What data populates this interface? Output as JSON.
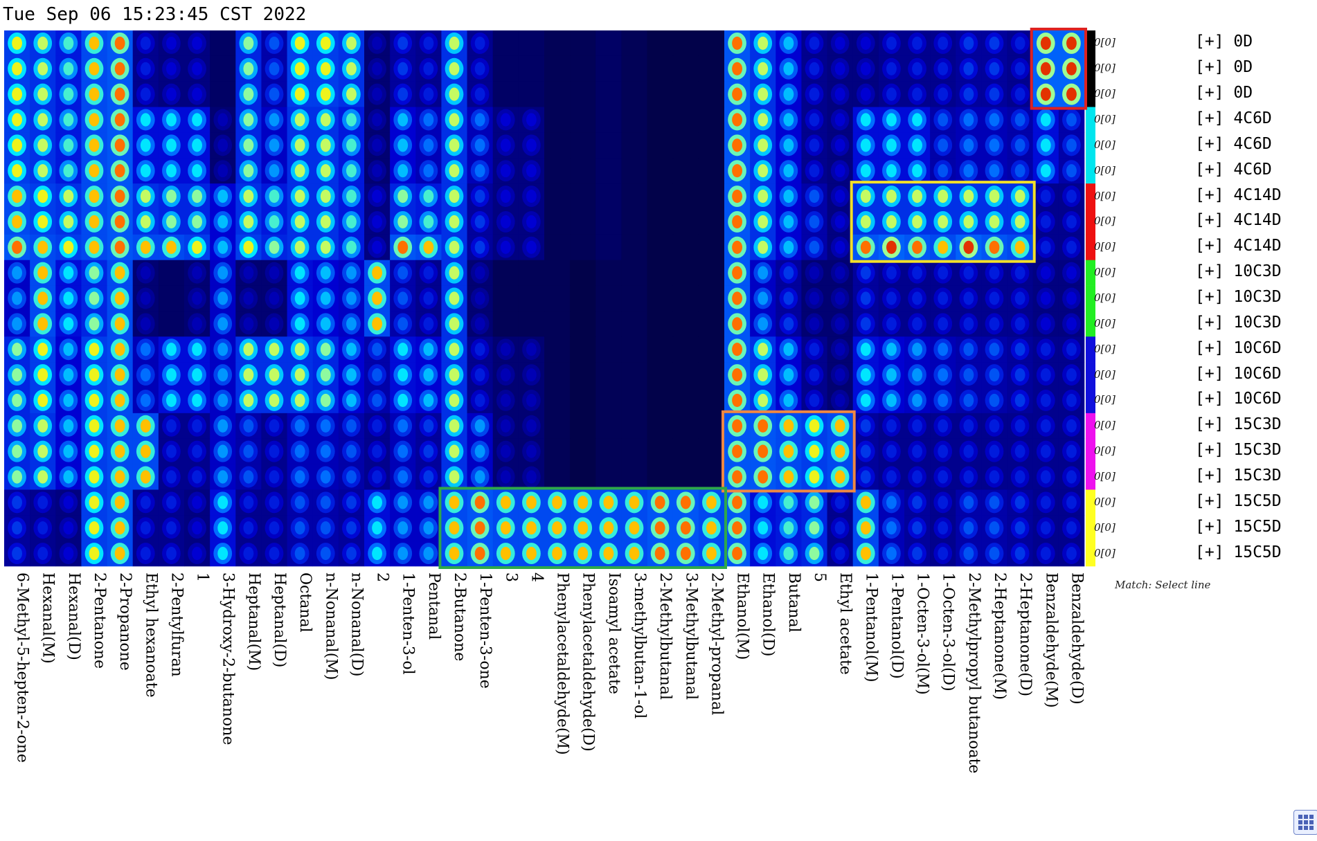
{
  "header": {
    "timestamp": "Tue Sep 06 15:23:45 CST 2022"
  },
  "footer": {
    "match_hint": "Match: Select line"
  },
  "chart_data": {
    "type": "heatmap",
    "title": "",
    "columns": [
      "6-Methyl-5-hepten-2-one",
      "Hexanal(M)",
      "Hexanal(D)",
      "2-Pentanone",
      "2-Propanone",
      "Ethyl hexanoate",
      "2-Pentylfuran",
      "1",
      "3-Hydroxy-2-butanone",
      "Heptanal(M)",
      "Heptanal(D)",
      "Octanal",
      "n-Nonanal(M)",
      "n-Nonanal(D)",
      "2",
      "1-Penten-3-ol",
      "Pentanal",
      "2-Butanone",
      "1-Penten-3-one",
      "3",
      "4",
      "Phenylacetaldehyde(M)",
      "Phenylacetaldehyde(D)",
      "Isoamyl acetate",
      "3-methylbutan-1-ol",
      "2-Methylbutanal",
      "3-Methylbutanal",
      "2-Methyl-propanal",
      "Ethanol(M)",
      "Ethanol(D)",
      "Butanal",
      "5",
      "Ethyl acetate",
      "1-Pentanol(M)",
      "1-Pentanol(D)",
      "1-Octen-3-ol(M)",
      "1-Octen-3-ol(D)",
      "2-Methylpropyl butanoate",
      "2-Heptanone(M)",
      "2-Heptanone(D)",
      "Benzaldehyde(M)",
      "Benzaldehyde(D)"
    ],
    "rows": [
      {
        "label": "[+] 0D",
        "value": "0[0]",
        "color": "#000000"
      },
      {
        "label": "[+] 0D",
        "value": "0[0]",
        "color": "#000000"
      },
      {
        "label": "[+] 0D",
        "value": "0[0]",
        "color": "#000000"
      },
      {
        "label": "[+] 4C6D",
        "value": "0[0]",
        "color": "#00e5ee"
      },
      {
        "label": "[+] 4C6D",
        "value": "0[0]",
        "color": "#00e5ee"
      },
      {
        "label": "[+] 4C6D",
        "value": "0[0]",
        "color": "#00e5ee"
      },
      {
        "label": "[+] 4C14D",
        "value": "0[0]",
        "color": "#ee1111"
      },
      {
        "label": "[+] 4C14D",
        "value": "0[0]",
        "color": "#ee1111"
      },
      {
        "label": "[+] 4C14D",
        "value": "0[0]",
        "color": "#ee1111"
      },
      {
        "label": "[+] 10C3D",
        "value": "0[0]",
        "color": "#22ee22"
      },
      {
        "label": "[+] 10C3D",
        "value": "0[0]",
        "color": "#22ee22"
      },
      {
        "label": "[+] 10C3D",
        "value": "0[0]",
        "color": "#22ee22"
      },
      {
        "label": "[+] 10C6D",
        "value": "0[0]",
        "color": "#1010dd"
      },
      {
        "label": "[+] 10C6D",
        "value": "0[0]",
        "color": "#1010dd"
      },
      {
        "label": "[+] 10C6D",
        "value": "0[0]",
        "color": "#1010dd"
      },
      {
        "label": "[+] 15C3D",
        "value": "0[0]",
        "color": "#ee11ee"
      },
      {
        "label": "[+] 15C3D",
        "value": "0[0]",
        "color": "#ee11ee"
      },
      {
        "label": "[+] 15C3D",
        "value": "0[0]",
        "color": "#ee11ee"
      },
      {
        "label": "[+] 15C5D",
        "value": "0[0]",
        "color": "#ffff22"
      },
      {
        "label": "[+] 15C5D",
        "value": "0[0]",
        "color": "#ffff22"
      },
      {
        "label": "[+] 15C5D",
        "value": "0[0]",
        "color": "#ffff22"
      }
    ],
    "intensity_scale": [
      0,
      1
    ],
    "values": [
      [
        0.8,
        0.75,
        0.65,
        0.85,
        0.9,
        0.3,
        0.25,
        0.25,
        0.15,
        0.7,
        0.4,
        0.8,
        0.8,
        0.75,
        0.2,
        0.35,
        0.3,
        0.75,
        0.3,
        0.15,
        0.15,
        0.1,
        0.1,
        0.15,
        0.1,
        0.05,
        0.05,
        0.05,
        0.9,
        0.75,
        0.55,
        0.3,
        0.25,
        0.25,
        0.3,
        0.3,
        0.3,
        0.35,
        0.35,
        0.3,
        0.95,
        0.95
      ],
      [
        0.8,
        0.75,
        0.65,
        0.85,
        0.9,
        0.3,
        0.25,
        0.25,
        0.15,
        0.7,
        0.4,
        0.8,
        0.8,
        0.75,
        0.2,
        0.35,
        0.3,
        0.75,
        0.3,
        0.15,
        0.15,
        0.1,
        0.1,
        0.15,
        0.1,
        0.05,
        0.05,
        0.05,
        0.9,
        0.75,
        0.55,
        0.3,
        0.25,
        0.25,
        0.3,
        0.3,
        0.3,
        0.35,
        0.35,
        0.3,
        0.95,
        0.95
      ],
      [
        0.8,
        0.75,
        0.65,
        0.85,
        0.9,
        0.3,
        0.25,
        0.25,
        0.15,
        0.7,
        0.4,
        0.8,
        0.8,
        0.75,
        0.2,
        0.35,
        0.3,
        0.75,
        0.3,
        0.15,
        0.15,
        0.1,
        0.1,
        0.15,
        0.1,
        0.05,
        0.05,
        0.05,
        0.9,
        0.75,
        0.55,
        0.3,
        0.25,
        0.25,
        0.3,
        0.3,
        0.3,
        0.35,
        0.35,
        0.3,
        0.95,
        0.95
      ],
      [
        0.8,
        0.75,
        0.65,
        0.85,
        0.9,
        0.6,
        0.6,
        0.6,
        0.2,
        0.7,
        0.5,
        0.75,
        0.75,
        0.65,
        0.2,
        0.55,
        0.45,
        0.75,
        0.45,
        0.25,
        0.25,
        0.1,
        0.1,
        0.15,
        0.1,
        0.05,
        0.05,
        0.05,
        0.9,
        0.75,
        0.55,
        0.3,
        0.25,
        0.6,
        0.6,
        0.6,
        0.4,
        0.45,
        0.45,
        0.4,
        0.6,
        0.4
      ],
      [
        0.8,
        0.75,
        0.65,
        0.85,
        0.9,
        0.6,
        0.6,
        0.6,
        0.2,
        0.7,
        0.5,
        0.75,
        0.75,
        0.65,
        0.2,
        0.55,
        0.45,
        0.75,
        0.45,
        0.25,
        0.25,
        0.1,
        0.1,
        0.15,
        0.1,
        0.05,
        0.05,
        0.05,
        0.9,
        0.75,
        0.55,
        0.3,
        0.25,
        0.6,
        0.6,
        0.6,
        0.4,
        0.45,
        0.45,
        0.4,
        0.6,
        0.4
      ],
      [
        0.8,
        0.75,
        0.65,
        0.85,
        0.9,
        0.6,
        0.6,
        0.6,
        0.2,
        0.7,
        0.5,
        0.75,
        0.75,
        0.65,
        0.2,
        0.55,
        0.45,
        0.75,
        0.45,
        0.25,
        0.25,
        0.1,
        0.1,
        0.15,
        0.1,
        0.05,
        0.05,
        0.05,
        0.9,
        0.75,
        0.55,
        0.3,
        0.25,
        0.6,
        0.6,
        0.6,
        0.4,
        0.45,
        0.45,
        0.4,
        0.6,
        0.4
      ],
      [
        0.85,
        0.8,
        0.75,
        0.85,
        0.9,
        0.75,
        0.7,
        0.7,
        0.55,
        0.75,
        0.65,
        0.75,
        0.75,
        0.65,
        0.25,
        0.7,
        0.65,
        0.75,
        0.35,
        0.25,
        0.25,
        0.1,
        0.1,
        0.15,
        0.1,
        0.05,
        0.05,
        0.05,
        0.9,
        0.75,
        0.55,
        0.4,
        0.25,
        0.75,
        0.75,
        0.75,
        0.75,
        0.75,
        0.75,
        0.75,
        0.3,
        0.3
      ],
      [
        0.85,
        0.8,
        0.75,
        0.85,
        0.9,
        0.75,
        0.7,
        0.7,
        0.55,
        0.75,
        0.65,
        0.75,
        0.75,
        0.65,
        0.25,
        0.7,
        0.65,
        0.75,
        0.35,
        0.25,
        0.25,
        0.1,
        0.1,
        0.15,
        0.1,
        0.05,
        0.05,
        0.05,
        0.9,
        0.75,
        0.55,
        0.4,
        0.25,
        0.75,
        0.75,
        0.75,
        0.75,
        0.75,
        0.75,
        0.75,
        0.3,
        0.3
      ],
      [
        0.9,
        0.85,
        0.8,
        0.85,
        0.9,
        0.85,
        0.85,
        0.8,
        0.55,
        0.8,
        0.7,
        0.75,
        0.75,
        0.65,
        0.25,
        0.9,
        0.85,
        0.75,
        0.35,
        0.25,
        0.25,
        0.1,
        0.1,
        0.15,
        0.1,
        0.05,
        0.05,
        0.05,
        0.9,
        0.75,
        0.55,
        0.4,
        0.25,
        0.9,
        0.95,
        0.9,
        0.85,
        0.95,
        0.9,
        0.85,
        0.3,
        0.3
      ],
      [
        0.5,
        0.85,
        0.6,
        0.7,
        0.85,
        0.2,
        0.15,
        0.2,
        0.5,
        0.2,
        0.2,
        0.6,
        0.55,
        0.5,
        0.85,
        0.4,
        0.3,
        0.75,
        0.2,
        0.1,
        0.1,
        0.1,
        0.05,
        0.1,
        0.1,
        0.05,
        0.05,
        0.05,
        0.9,
        0.5,
        0.35,
        0.2,
        0.2,
        0.35,
        0.3,
        0.3,
        0.3,
        0.3,
        0.3,
        0.3,
        0.25,
        0.25
      ],
      [
        0.5,
        0.85,
        0.6,
        0.7,
        0.85,
        0.2,
        0.15,
        0.2,
        0.5,
        0.2,
        0.2,
        0.6,
        0.55,
        0.5,
        0.85,
        0.4,
        0.3,
        0.75,
        0.2,
        0.1,
        0.1,
        0.1,
        0.05,
        0.1,
        0.1,
        0.05,
        0.05,
        0.05,
        0.9,
        0.5,
        0.35,
        0.2,
        0.2,
        0.35,
        0.3,
        0.3,
        0.3,
        0.3,
        0.3,
        0.3,
        0.25,
        0.25
      ],
      [
        0.5,
        0.85,
        0.6,
        0.7,
        0.85,
        0.2,
        0.15,
        0.2,
        0.5,
        0.2,
        0.2,
        0.6,
        0.55,
        0.5,
        0.85,
        0.4,
        0.3,
        0.75,
        0.2,
        0.1,
        0.1,
        0.1,
        0.05,
        0.1,
        0.1,
        0.05,
        0.05,
        0.05,
        0.9,
        0.5,
        0.35,
        0.2,
        0.2,
        0.35,
        0.3,
        0.3,
        0.3,
        0.3,
        0.3,
        0.3,
        0.25,
        0.25
      ],
      [
        0.7,
        0.8,
        0.55,
        0.8,
        0.85,
        0.45,
        0.6,
        0.6,
        0.5,
        0.75,
        0.75,
        0.75,
        0.7,
        0.55,
        0.4,
        0.6,
        0.55,
        0.75,
        0.3,
        0.2,
        0.2,
        0.1,
        0.05,
        0.1,
        0.1,
        0.05,
        0.05,
        0.05,
        0.9,
        0.75,
        0.55,
        0.3,
        0.2,
        0.6,
        0.55,
        0.5,
        0.45,
        0.4,
        0.4,
        0.35,
        0.3,
        0.3
      ],
      [
        0.7,
        0.8,
        0.55,
        0.8,
        0.85,
        0.45,
        0.6,
        0.6,
        0.5,
        0.75,
        0.75,
        0.75,
        0.7,
        0.55,
        0.4,
        0.6,
        0.55,
        0.75,
        0.3,
        0.2,
        0.2,
        0.1,
        0.05,
        0.1,
        0.1,
        0.05,
        0.05,
        0.05,
        0.9,
        0.75,
        0.55,
        0.3,
        0.2,
        0.6,
        0.55,
        0.5,
        0.45,
        0.4,
        0.4,
        0.35,
        0.3,
        0.3
      ],
      [
        0.7,
        0.8,
        0.55,
        0.8,
        0.85,
        0.45,
        0.6,
        0.6,
        0.5,
        0.75,
        0.75,
        0.75,
        0.7,
        0.55,
        0.4,
        0.6,
        0.55,
        0.75,
        0.3,
        0.2,
        0.2,
        0.1,
        0.05,
        0.1,
        0.1,
        0.05,
        0.05,
        0.05,
        0.9,
        0.75,
        0.55,
        0.3,
        0.2,
        0.6,
        0.55,
        0.5,
        0.45,
        0.4,
        0.4,
        0.35,
        0.3,
        0.3
      ],
      [
        0.7,
        0.75,
        0.55,
        0.8,
        0.85,
        0.85,
        0.3,
        0.3,
        0.5,
        0.4,
        0.3,
        0.45,
        0.45,
        0.4,
        0.3,
        0.45,
        0.35,
        0.75,
        0.5,
        0.2,
        0.2,
        0.1,
        0.05,
        0.1,
        0.1,
        0.05,
        0.05,
        0.05,
        0.9,
        0.9,
        0.85,
        0.8,
        0.85,
        0.35,
        0.3,
        0.3,
        0.3,
        0.3,
        0.3,
        0.3,
        0.3,
        0.3
      ],
      [
        0.7,
        0.75,
        0.55,
        0.8,
        0.85,
        0.85,
        0.3,
        0.3,
        0.5,
        0.4,
        0.3,
        0.45,
        0.45,
        0.4,
        0.3,
        0.45,
        0.35,
        0.75,
        0.5,
        0.2,
        0.2,
        0.1,
        0.05,
        0.1,
        0.1,
        0.05,
        0.05,
        0.05,
        0.9,
        0.9,
        0.85,
        0.8,
        0.85,
        0.35,
        0.3,
        0.3,
        0.3,
        0.3,
        0.3,
        0.3,
        0.3,
        0.3
      ],
      [
        0.7,
        0.75,
        0.55,
        0.8,
        0.85,
        0.85,
        0.3,
        0.3,
        0.5,
        0.4,
        0.3,
        0.45,
        0.45,
        0.4,
        0.3,
        0.45,
        0.35,
        0.75,
        0.5,
        0.2,
        0.2,
        0.1,
        0.05,
        0.1,
        0.1,
        0.05,
        0.05,
        0.05,
        0.9,
        0.9,
        0.85,
        0.8,
        0.85,
        0.35,
        0.3,
        0.3,
        0.3,
        0.3,
        0.3,
        0.3,
        0.3,
        0.3
      ],
      [
        0.35,
        0.3,
        0.25,
        0.8,
        0.85,
        0.3,
        0.3,
        0.25,
        0.6,
        0.3,
        0.3,
        0.4,
        0.4,
        0.35,
        0.6,
        0.5,
        0.5,
        0.85,
        0.9,
        0.85,
        0.85,
        0.85,
        0.85,
        0.85,
        0.85,
        0.9,
        0.9,
        0.85,
        0.9,
        0.6,
        0.65,
        0.7,
        0.3,
        0.85,
        0.45,
        0.35,
        0.3,
        0.4,
        0.4,
        0.35,
        0.3,
        0.3
      ],
      [
        0.35,
        0.3,
        0.25,
        0.8,
        0.85,
        0.3,
        0.3,
        0.25,
        0.6,
        0.3,
        0.3,
        0.4,
        0.4,
        0.35,
        0.6,
        0.5,
        0.5,
        0.85,
        0.9,
        0.85,
        0.85,
        0.85,
        0.85,
        0.85,
        0.85,
        0.9,
        0.9,
        0.85,
        0.9,
        0.6,
        0.65,
        0.7,
        0.3,
        0.85,
        0.45,
        0.35,
        0.3,
        0.4,
        0.4,
        0.35,
        0.3,
        0.3
      ],
      [
        0.35,
        0.3,
        0.25,
        0.8,
        0.85,
        0.3,
        0.3,
        0.25,
        0.6,
        0.3,
        0.3,
        0.4,
        0.4,
        0.35,
        0.6,
        0.5,
        0.5,
        0.85,
        0.9,
        0.85,
        0.85,
        0.85,
        0.85,
        0.85,
        0.85,
        0.9,
        0.9,
        0.85,
        0.9,
        0.6,
        0.65,
        0.7,
        0.3,
        0.85,
        0.45,
        0.35,
        0.3,
        0.4,
        0.4,
        0.35,
        0.3,
        0.3
      ]
    ],
    "highlights": [
      {
        "color": "#dd2222",
        "col_start": 40,
        "col_end": 41,
        "row_start": 0,
        "row_end": 2
      },
      {
        "color": "#f2e02a",
        "col_start": 33,
        "col_end": 39,
        "row_start": 6,
        "row_end": 8
      },
      {
        "color": "#ee8844",
        "col_start": 28,
        "col_end": 32,
        "row_start": 15,
        "row_end": 17
      },
      {
        "color": "#2ea84a",
        "col_start": 17,
        "col_end": 27,
        "row_start": 18,
        "row_end": 20
      }
    ]
  }
}
